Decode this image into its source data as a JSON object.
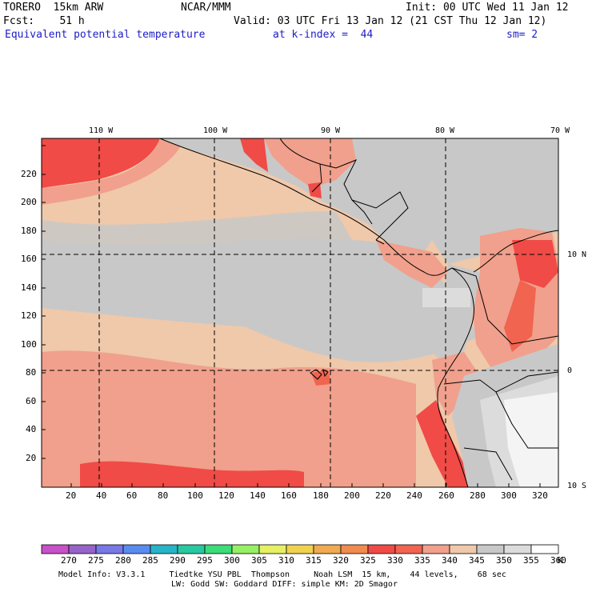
{
  "header": {
    "left_line1": "TORERO  15km ARW",
    "center_line1": "NCAR/MMM",
    "right_line1": "Init: 00 UTC Wed 11 Jan 12",
    "left_line2": "Fcst:    51 h",
    "right_line2": "Valid: 03 UTC Fri 13 Jan 12 (21 CST Thu 12 Jan 12)",
    "field_name": "Equivalent potential temperature",
    "level": "at k-index =  44",
    "smoothing": "sm= 2"
  },
  "map": {
    "lon_labels": [
      "110 W",
      "100 W",
      "90 W",
      "80 W",
      "70 W"
    ],
    "lat_labels": [
      "10 N",
      "0",
      "10 S"
    ],
    "y_ticks": [
      "20",
      "40",
      "60",
      "80",
      "100",
      "120",
      "140",
      "160",
      "180",
      "200",
      "220"
    ],
    "x_ticks": [
      "20",
      "40",
      "60",
      "80",
      "100",
      "120",
      "140",
      "160",
      "180",
      "200",
      "220",
      "240",
      "260",
      "280",
      "300",
      "320"
    ]
  },
  "colorbar": {
    "labels": [
      "270",
      "275",
      "280",
      "285",
      "290",
      "295",
      "300",
      "305",
      "310",
      "315",
      "320",
      "325",
      "330",
      "335",
      "340",
      "345",
      "350",
      "355",
      "360"
    ],
    "unit": "K",
    "colors": [
      "#c850c8",
      "#9664c8",
      "#7878e6",
      "#5a8cf0",
      "#28b4c8",
      "#28c8a0",
      "#3cdc78",
      "#96f064",
      "#e6f064",
      "#f0d250",
      "#f0aa50",
      "#f08c50",
      "#f04b46",
      "#f06450",
      "#f0a08c",
      "#f0c8aa",
      "#c8c8c8",
      "#dcdcdc",
      "#ffffff"
    ]
  },
  "footer": {
    "line1": "Model Info: V3.3.1     Tiedtke YSU PBL  Thompson     Noah LSM  15 km,    44 levels,    68 sec",
    "line2": "LW: Godd SW: Goddard DIFF: simple KM: 2D Smagor"
  }
}
